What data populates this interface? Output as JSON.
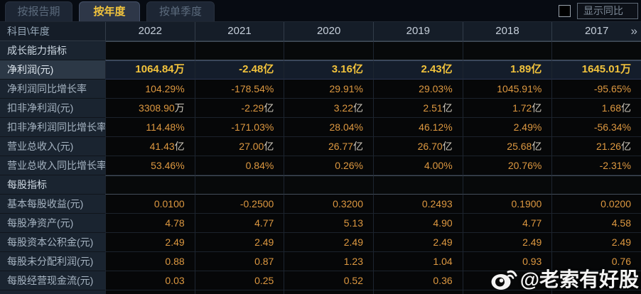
{
  "tabs": [
    {
      "label": "按报告期",
      "active": false
    },
    {
      "label": "按年度",
      "active": true
    },
    {
      "label": "按单季度",
      "active": false
    }
  ],
  "controls": {
    "show_yoy_label": "显示同比",
    "show_yoy_checked": false
  },
  "table": {
    "corner_label": "科目\\年度",
    "years": [
      "2022",
      "2021",
      "2020",
      "2019",
      "2018",
      "2017"
    ],
    "more_indicator": "»",
    "rows": [
      {
        "type": "section",
        "label": "成长能力指标"
      },
      {
        "type": "data",
        "highlight": true,
        "label": "净利润(元)",
        "values": [
          {
            "num": "1064.84",
            "suffix": "万"
          },
          {
            "num": "-2.48",
            "suffix": "亿"
          },
          {
            "num": "3.16",
            "suffix": "亿"
          },
          {
            "num": "2.43",
            "suffix": "亿"
          },
          {
            "num": "1.89",
            "suffix": "亿"
          },
          {
            "num": "1645.01",
            "suffix": "万"
          }
        ]
      },
      {
        "type": "data",
        "label": "净利润同比增长率",
        "values": [
          {
            "num": "104.29%"
          },
          {
            "num": "-178.54%"
          },
          {
            "num": "29.91%"
          },
          {
            "num": "29.03%"
          },
          {
            "num": "1045.91%"
          },
          {
            "num": "-95.65%"
          }
        ]
      },
      {
        "type": "data",
        "label": "扣非净利润(元)",
        "values": [
          {
            "num": "3308.90",
            "suffix": "万"
          },
          {
            "num": "-2.29",
            "suffix": "亿"
          },
          {
            "num": "3.22",
            "suffix": "亿"
          },
          {
            "num": "2.51",
            "suffix": "亿"
          },
          {
            "num": "1.72",
            "suffix": "亿"
          },
          {
            "num": "1.68",
            "suffix": "亿"
          }
        ]
      },
      {
        "type": "data",
        "label": "扣非净利润同比增长率",
        "values": [
          {
            "num": "114.48%"
          },
          {
            "num": "-171.03%"
          },
          {
            "num": "28.04%"
          },
          {
            "num": "46.12%"
          },
          {
            "num": "2.49%"
          },
          {
            "num": "-56.34%"
          }
        ]
      },
      {
        "type": "data",
        "label": "营业总收入(元)",
        "values": [
          {
            "num": "41.43",
            "suffix": "亿"
          },
          {
            "num": "27.00",
            "suffix": "亿"
          },
          {
            "num": "26.77",
            "suffix": "亿"
          },
          {
            "num": "26.70",
            "suffix": "亿"
          },
          {
            "num": "25.68",
            "suffix": "亿"
          },
          {
            "num": "21.26",
            "suffix": "亿"
          }
        ]
      },
      {
        "type": "data",
        "label": "营业总收入同比增长率",
        "values": [
          {
            "num": "53.46%"
          },
          {
            "num": "0.84%"
          },
          {
            "num": "0.26%"
          },
          {
            "num": "4.00%"
          },
          {
            "num": "20.76%"
          },
          {
            "num": "-2.31%"
          }
        ]
      },
      {
        "type": "section",
        "label": "每股指标"
      },
      {
        "type": "data",
        "label": "基本每股收益(元)",
        "values": [
          {
            "num": "0.0100"
          },
          {
            "num": "-0.2500"
          },
          {
            "num": "0.3200"
          },
          {
            "num": "0.2493"
          },
          {
            "num": "0.1900"
          },
          {
            "num": "0.0200"
          }
        ]
      },
      {
        "type": "data",
        "label": "每股净资产(元)",
        "values": [
          {
            "num": "4.78"
          },
          {
            "num": "4.77"
          },
          {
            "num": "5.13"
          },
          {
            "num": "4.90"
          },
          {
            "num": "4.77"
          },
          {
            "num": "4.58"
          }
        ]
      },
      {
        "type": "data",
        "label": "每股资本公积金(元)",
        "values": [
          {
            "num": "2.49"
          },
          {
            "num": "2.49"
          },
          {
            "num": "2.49"
          },
          {
            "num": "2.49"
          },
          {
            "num": "2.49"
          },
          {
            "num": "2.49"
          }
        ]
      },
      {
        "type": "data",
        "label": "每股未分配利润(元)",
        "values": [
          {
            "num": "0.88"
          },
          {
            "num": "0.87"
          },
          {
            "num": "1.23"
          },
          {
            "num": "1.04"
          },
          {
            "num": "0.93"
          },
          {
            "num": "0.76"
          }
        ]
      },
      {
        "type": "data",
        "label": "每股经营现金流(元)",
        "values": [
          {
            "num": "0.03"
          },
          {
            "num": "0.25"
          },
          {
            "num": "0.52"
          },
          {
            "num": "0.36"
          },
          {
            "num": ""
          },
          {
            "num": ""
          }
        ]
      }
    ]
  },
  "watermark": {
    "text": "@老索有好股",
    "icon": "weibo-icon"
  },
  "colors": {
    "accent_gold": "#f2c33c",
    "value_orange": "#dd9840",
    "highlight_row_bg": "#141d2b",
    "label_column_bg": "#1a2430",
    "value_cell_bg": "#060708"
  }
}
